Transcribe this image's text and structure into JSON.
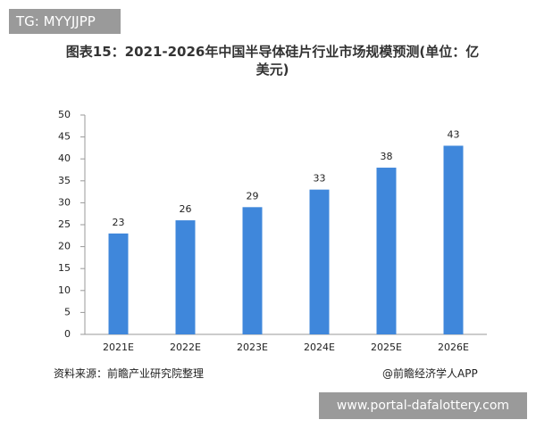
{
  "badge": "TG: MYYJJPP",
  "chart_data": {
    "type": "bar",
    "title": "图表15：2021-2026年中国半导体硅片行业市场规模预测(单位：亿美元)",
    "categories": [
      "2021E",
      "2022E",
      "2023E",
      "2024E",
      "2025E",
      "2026E"
    ],
    "values": [
      23,
      26,
      29,
      33,
      38,
      43
    ],
    "color": "#3f87db",
    "ylim": [
      0,
      50
    ],
    "yticks": [
      0,
      5,
      10,
      15,
      20,
      25,
      30,
      35,
      40,
      45,
      50
    ],
    "grid": false
  },
  "source": "资料来源：前瞻产业研究院整理",
  "credit": "@前瞻经济学人APP",
  "footer_url": "www.portal-dafalottery.com"
}
